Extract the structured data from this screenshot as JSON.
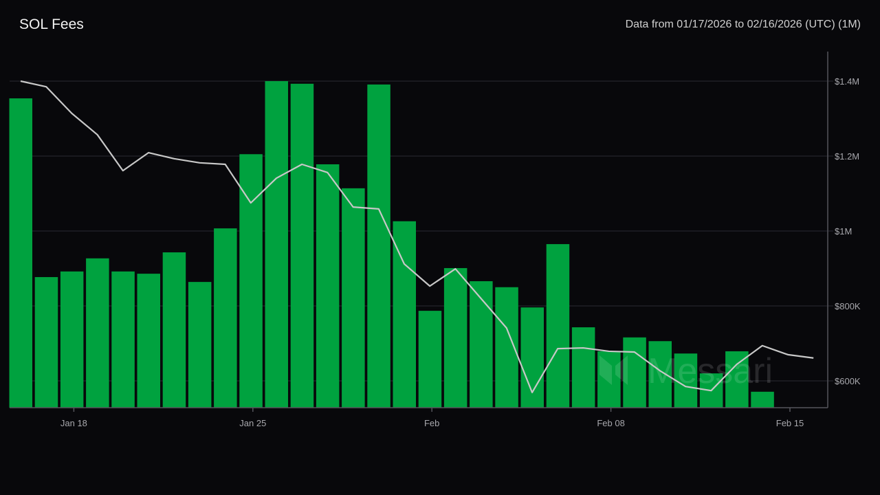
{
  "header": {
    "title": "SOL Fees",
    "range": "Data from 01/17/2026 to 02/16/2026 (UTC) (1M)"
  },
  "watermark": "Messari",
  "colors": {
    "bar": "#00a23f",
    "line": "#c8c8c8",
    "grid": "#2a2a33",
    "background": "#08080b"
  },
  "chart_data": {
    "type": "bar",
    "title": "SOL Fees",
    "dates": [
      "Jan 16",
      "Jan 17",
      "Jan 18",
      "Jan 19",
      "Jan 20",
      "Jan 21",
      "Jan 22",
      "Jan 23",
      "Jan 24",
      "Jan 25",
      "Jan 26",
      "Jan 27",
      "Jan 28",
      "Jan 29",
      "Jan 30",
      "Jan 31",
      "Feb 01",
      "Feb 02",
      "Feb 03",
      "Feb 04",
      "Feb 05",
      "Feb 06",
      "Feb 07",
      "Feb 08",
      "Feb 09",
      "Feb 10",
      "Feb 11",
      "Feb 12",
      "Feb 13",
      "Feb 14",
      "Feb 15",
      "Feb 16"
    ],
    "series": [
      {
        "name": "Daily Fees (USD)",
        "type": "bar",
        "values": [
          1354000,
          877000,
          892000,
          927000,
          892000,
          886000,
          943000,
          864000,
          1007000,
          1205000,
          1400000,
          1393000,
          1178000,
          1114000,
          1391000,
          1026000,
          787000,
          901000,
          866000,
          850000,
          796000,
          965000,
          743000,
          679000,
          716000,
          706000,
          673000,
          620000,
          679000,
          571000,
          null,
          null
        ]
      },
      {
        "name": "Moving Average (USD)",
        "type": "line",
        "values": [
          1400000,
          1385000,
          1314000,
          1257000,
          1161000,
          1209000,
          1193000,
          1182000,
          1178000,
          1075000,
          1141000,
          1178000,
          1156000,
          1064000,
          1059000,
          912000,
          853000,
          899000,
          820000,
          741000,
          569000,
          686000,
          688000,
          679000,
          677000,
          627000,
          585000,
          574000,
          644000,
          694000,
          670000,
          661000
        ]
      }
    ],
    "x_ticks": [
      {
        "date": "Jan 18",
        "label": "Jan 18"
      },
      {
        "date": "Jan 25",
        "label": "Jan 25"
      },
      {
        "date": "Feb 01",
        "label": "Feb"
      },
      {
        "date": "Feb 08",
        "label": "Feb 08"
      },
      {
        "date": "Feb 15",
        "label": "Feb 15"
      }
    ],
    "y_ticks": [
      {
        "value": 600000,
        "label": "$600K"
      },
      {
        "value": 800000,
        "label": "$800K"
      },
      {
        "value": 1000000,
        "label": "$1M"
      },
      {
        "value": 1200000,
        "label": "$1.2M"
      },
      {
        "value": 1400000,
        "label": "$1.4M"
      }
    ],
    "ylim": [
      528000,
      1482000
    ],
    "yaxis_side": "right",
    "grid": true
  }
}
